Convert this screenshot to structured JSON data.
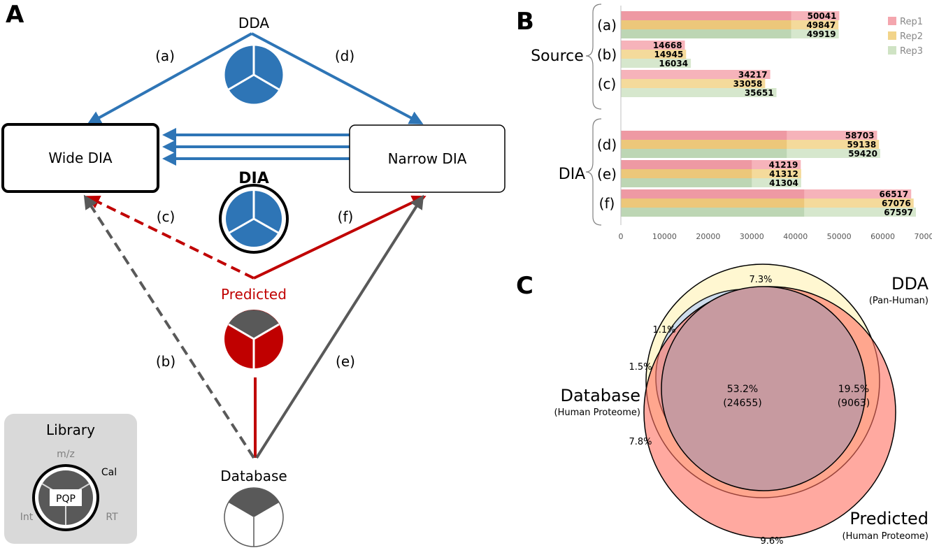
{
  "panelA": {
    "letter": "A",
    "nodes": {
      "dda": "DDA",
      "wide": "Wide DIA",
      "narrow": "Narrow DIA",
      "dia": "DIA",
      "predicted": "Predicted",
      "database": "Database"
    },
    "edge_labels": {
      "a": "(a)",
      "b": "(b)",
      "c": "(c)",
      "d": "(d)",
      "e": "(e)",
      "f": "(f)"
    },
    "library": {
      "title": "Library",
      "mz": "m/z",
      "cal": "Cal",
      "int": "Int",
      "rt": "RT",
      "pqp": "PQP"
    },
    "colors": {
      "blue": "#2e75b6",
      "red": "#c00000",
      "gray": "#595959"
    }
  },
  "panelB": {
    "letter": "B",
    "group_labels": [
      "Source",
      "DIA"
    ],
    "legend": [
      "Rep1",
      "Rep2",
      "Rep3"
    ],
    "colors": {
      "rep1": "#f4a6ae",
      "rep2": "#f2d48a",
      "rep3": "#cfe3c4"
    }
  },
  "panelC": {
    "letter": "C",
    "dda": "DDA",
    "dda_sub": "(Pan-Human)",
    "database": "Database",
    "database_sub": "(Human Proteome)",
    "predicted": "Predicted",
    "predicted_sub": "(Human Proteome)",
    "pct_top": "7.3%",
    "pct_11": "1.1%",
    "pct_15": "1.5%",
    "pct_78": "7.8%",
    "center_pct": "53.2%",
    "center_count": "(24655)",
    "right_pct": "19.5%",
    "right_count": "(9063)",
    "pct_bottom": "9.6%"
  },
  "chart_data": {
    "type": "bar",
    "orientation": "horizontal",
    "categories": [
      "(a)",
      "(b)",
      "(c)",
      "(d)",
      "(e)",
      "(f)"
    ],
    "groups": {
      "Source": [
        "(a)",
        "(b)",
        "(c)"
      ],
      "DIA": [
        "(d)",
        "(e)",
        "(f)"
      ]
    },
    "series": [
      {
        "name": "Rep1",
        "values": [
          50041,
          14668,
          34217,
          58703,
          41219,
          66517
        ]
      },
      {
        "name": "Rep2",
        "values": [
          49847,
          14945,
          33058,
          59138,
          41312,
          67076
        ]
      },
      {
        "name": "Rep3",
        "values": [
          49919,
          16034,
          35651,
          59420,
          41304,
          67597
        ]
      }
    ],
    "shared_overlap": [
      39000,
      null,
      null,
      38000,
      30000,
      42000
    ],
    "xlim": [
      0,
      70000
    ],
    "xticks": [
      0,
      10000,
      20000,
      30000,
      40000,
      50000,
      60000,
      70000
    ],
    "legend_position": "top-right"
  }
}
